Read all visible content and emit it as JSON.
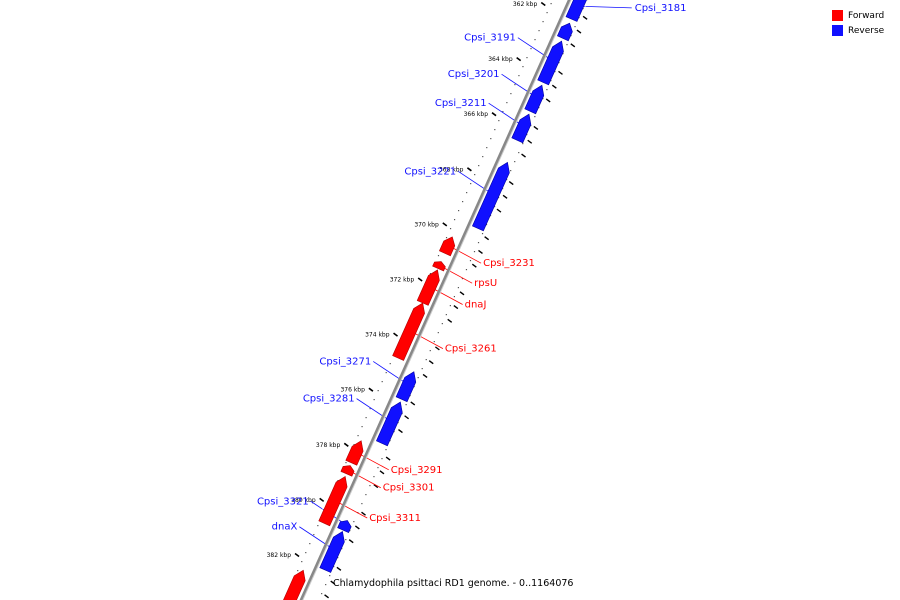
{
  "legend": {
    "items": [
      {
        "label": "Forward",
        "color": "#ff0000"
      },
      {
        "label": "Reverse",
        "color": "#1010ff"
      }
    ]
  },
  "caption": "Chlamydophila psittaci RD1 genome. - 0..1164076",
  "ticks": [
    "362 kbp",
    "364 kbp",
    "366 kbp",
    "368 kbp",
    "370 kbp",
    "372 kbp",
    "374 kbp",
    "376 kbp",
    "378 kbp",
    "380 kbp",
    "382 kbp"
  ],
  "colors": {
    "forward": "#ff0000",
    "reverse": "#1010ff",
    "backbone": "#888888"
  },
  "genes": [
    {
      "name": "Cpsi_3181",
      "strand": "reverse",
      "start": 361.3,
      "end": 362.4,
      "labeled": true
    },
    {
      "name": "",
      "strand": "reverse",
      "start": 362.55,
      "end": 363.1,
      "labeled": false
    },
    {
      "name": "Cpsi_3191",
      "strand": "reverse",
      "start": 363.2,
      "end": 364.7,
      "labeled": true
    },
    {
      "name": "Cpsi_3201",
      "strand": "reverse",
      "start": 364.8,
      "end": 365.75,
      "labeled": true
    },
    {
      "name": "Cpsi_3211",
      "strand": "reverse",
      "start": 365.85,
      "end": 366.8,
      "labeled": true
    },
    {
      "name": "Cpsi_3221",
      "strand": "reverse",
      "start": 367.6,
      "end": 370.0,
      "labeled": true
    },
    {
      "name": "Cpsi_3231",
      "strand": "forward",
      "start": 370.6,
      "end": 371.2,
      "labeled": true
    },
    {
      "name": "rpsU",
      "strand": "forward",
      "start": 371.5,
      "end": 371.75,
      "labeled": true
    },
    {
      "name": "dnaJ",
      "strand": "forward",
      "start": 371.8,
      "end": 373.0,
      "labeled": true
    },
    {
      "name": "Cpsi_3261",
      "strand": "forward",
      "start": 373.0,
      "end": 375.0,
      "labeled": true
    },
    {
      "name": "Cpsi_3271",
      "strand": "reverse",
      "start": 375.2,
      "end": 376.2,
      "labeled": true
    },
    {
      "name": "Cpsi_3281",
      "strand": "reverse",
      "start": 376.3,
      "end": 377.8,
      "labeled": true
    },
    {
      "name": "Cpsi_3291",
      "strand": "forward",
      "start": 378.0,
      "end": 378.8,
      "labeled": true
    },
    {
      "name": "Cpsi_3301",
      "strand": "forward",
      "start": 378.9,
      "end": 379.2,
      "labeled": true
    },
    {
      "name": "Cpsi_3311",
      "strand": "forward",
      "start": 379.3,
      "end": 381.0,
      "labeled": true
    },
    {
      "name": "Cpsi_3321",
      "strand": "reverse",
      "start": 380.6,
      "end": 380.95,
      "labeled": true
    },
    {
      "name": "dnaX",
      "strand": "reverse",
      "start": 381.0,
      "end": 382.4,
      "labeled": true
    },
    {
      "name": "",
      "strand": "forward",
      "start": 382.7,
      "end": 384.5,
      "labeled": false
    }
  ]
}
